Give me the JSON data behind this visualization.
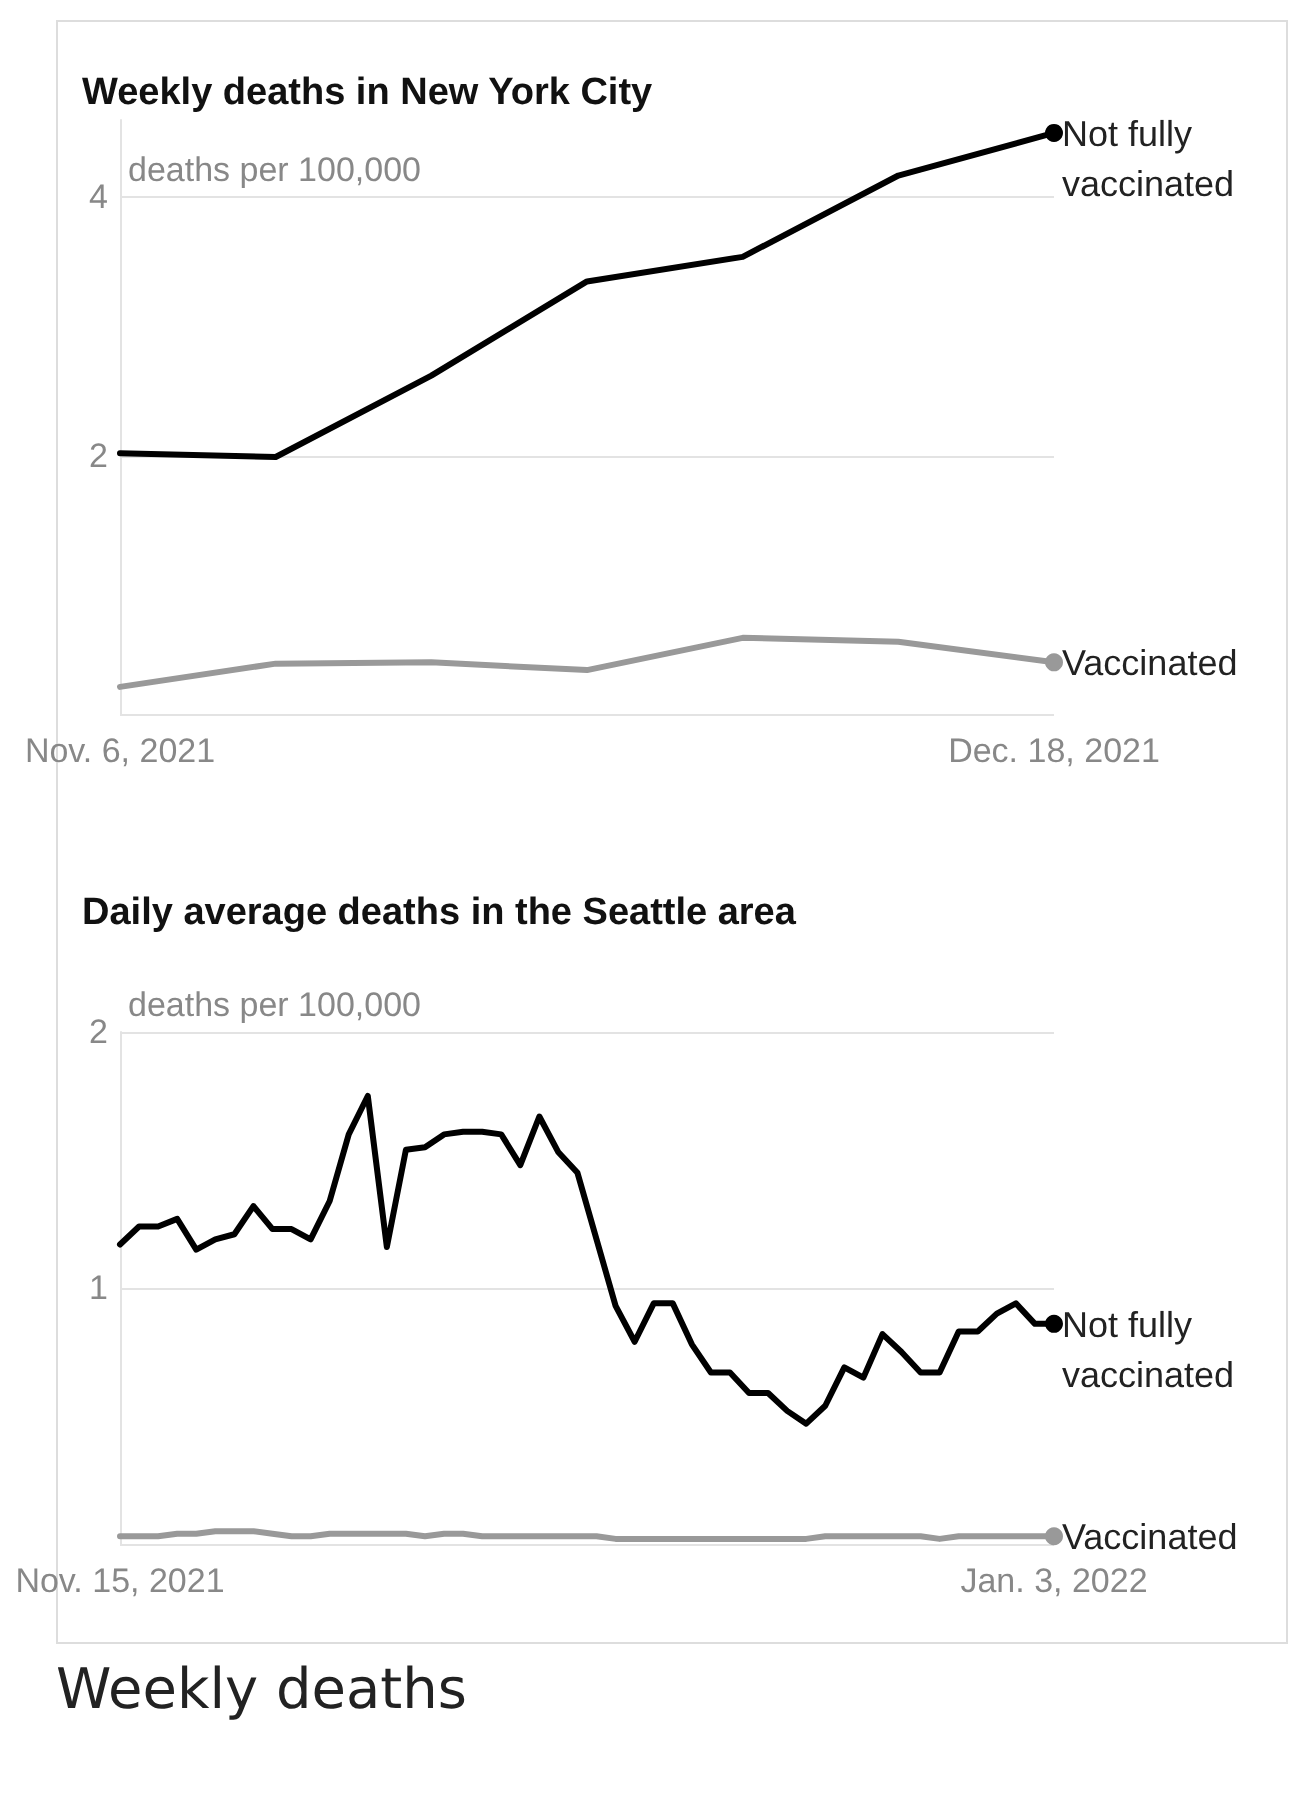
{
  "chart_data": [
    {
      "type": "line",
      "title": "Weekly deaths in New York City",
      "x": [
        "2021-11-06",
        "2021-11-13",
        "2021-11-20",
        "2021-11-27",
        "2021-12-04",
        "2021-12-11",
        "2021-12-18"
      ],
      "xlim": [
        "2021-11-06",
        "2021-12-18"
      ],
      "xticks": [
        {
          "value": "2021-11-06",
          "label": "Nov. 6, 2021"
        },
        {
          "value": "2021-12-18",
          "label": "Dec. 18, 2021"
        }
      ],
      "ylim": [
        0,
        4.6
      ],
      "yticks": [
        {
          "value": 0,
          "label": null
        },
        2,
        4
      ],
      "ylabel": "deaths per 100,000",
      "grid": "y",
      "legend": "right",
      "series": [
        {
          "name": "Not fully vaccinated",
          "color": "#000000",
          "values": [
            2.02,
            1.99,
            2.62,
            3.35,
            3.54,
            4.17,
            4.5
          ]
        },
        {
          "name": "Vaccinated",
          "color": "#999999",
          "values": [
            0.21,
            0.39,
            0.4,
            0.34,
            0.59,
            0.56,
            0.4
          ]
        }
      ]
    },
    {
      "type": "line",
      "title": "Daily average deaths in the Seattle area",
      "x": [
        "2021-11-15",
        "2021-11-16",
        "2021-11-17",
        "2021-11-18",
        "2021-11-19",
        "2021-11-20",
        "2021-11-21",
        "2021-11-22",
        "2021-11-23",
        "2021-11-24",
        "2021-11-25",
        "2021-11-26",
        "2021-11-27",
        "2021-11-28",
        "2021-11-29",
        "2021-11-30",
        "2021-12-01",
        "2021-12-02",
        "2021-12-03",
        "2021-12-04",
        "2021-12-05",
        "2021-12-06",
        "2021-12-07",
        "2021-12-08",
        "2021-12-09",
        "2021-12-10",
        "2021-12-11",
        "2021-12-12",
        "2021-12-13",
        "2021-12-14",
        "2021-12-15",
        "2021-12-16",
        "2021-12-17",
        "2021-12-18",
        "2021-12-19",
        "2021-12-20",
        "2021-12-21",
        "2021-12-22",
        "2021-12-23",
        "2021-12-24",
        "2021-12-25",
        "2021-12-26",
        "2021-12-27",
        "2021-12-28",
        "2021-12-29",
        "2021-12-30",
        "2021-12-31",
        "2022-01-01",
        "2022-01-02",
        "2022-01-03"
      ],
      "xlim": [
        "2021-11-15",
        "2022-01-03"
      ],
      "xticks": [
        {
          "value": "2021-11-15",
          "label": "Nov. 15, 2021"
        },
        {
          "value": "2022-01-03",
          "label": "Jan. 3, 2022"
        }
      ],
      "ylim": [
        0,
        2
      ],
      "yticks": [
        {
          "value": 0,
          "label": null
        },
        1,
        2
      ],
      "ylabel": "deaths per 100,000",
      "grid": "y",
      "legend": "right",
      "annotations": [
        "Weekly deaths"
      ],
      "series": [
        {
          "name": "Not fully vaccinated",
          "color": "#000000",
          "values": [
            1.17,
            1.24,
            1.24,
            1.27,
            1.15,
            1.19,
            1.21,
            1.32,
            1.23,
            1.23,
            1.19,
            1.34,
            1.6,
            1.75,
            1.16,
            1.54,
            1.55,
            1.6,
            1.61,
            1.61,
            1.6,
            1.48,
            1.67,
            1.53,
            1.45,
            1.19,
            0.93,
            0.79,
            0.94,
            0.94,
            0.78,
            0.67,
            0.67,
            0.59,
            0.59,
            0.52,
            0.47,
            0.54,
            0.69,
            0.65,
            0.82,
            0.75,
            0.67,
            0.67,
            0.83,
            0.83,
            0.9,
            0.94,
            0.86,
            0.86
          ]
        },
        {
          "name": "Vaccinated",
          "color": "#999999",
          "values": [
            0.03,
            0.03,
            0.03,
            0.04,
            0.04,
            0.05,
            0.05,
            0.05,
            0.04,
            0.03,
            0.03,
            0.04,
            0.04,
            0.04,
            0.04,
            0.04,
            0.03,
            0.04,
            0.04,
            0.03,
            0.03,
            0.03,
            0.03,
            0.03,
            0.03,
            0.03,
            0.02,
            0.02,
            0.02,
            0.02,
            0.02,
            0.02,
            0.02,
            0.02,
            0.02,
            0.02,
            0.02,
            0.03,
            0.03,
            0.03,
            0.03,
            0.03,
            0.03,
            0.02,
            0.03,
            0.03,
            0.03,
            0.03,
            0.03,
            0.03
          ]
        }
      ]
    }
  ]
}
